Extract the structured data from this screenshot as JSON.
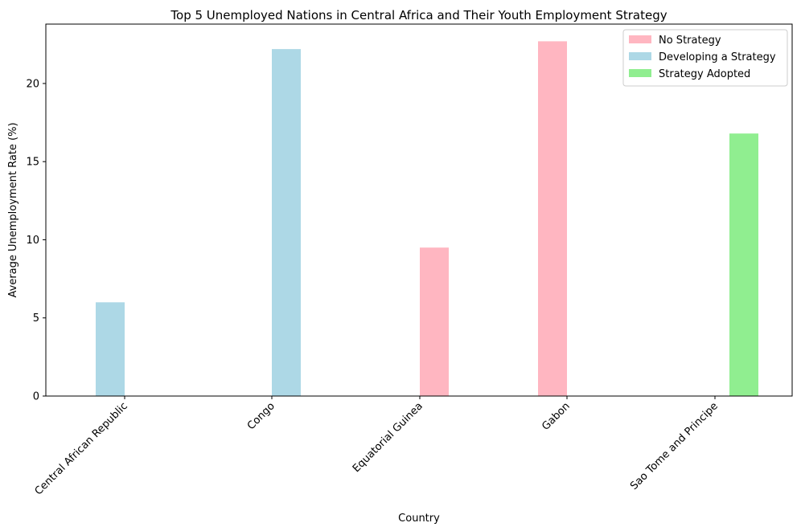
{
  "chart_data": {
    "type": "bar",
    "title": "Top 5 Unemployed Nations in Central Africa and Their Youth Employment Strategy",
    "xlabel": "Country",
    "ylabel": "Average Unemployment Rate (%)",
    "categories": [
      "Central African Republic",
      "Congo",
      "Equatorial Guinea",
      "Gabon",
      "Sao Tome and Principe"
    ],
    "ylim": [
      0,
      23.8
    ],
    "yticks": [
      0,
      5,
      10,
      15,
      20
    ],
    "ytick_labels": [
      "0",
      "5",
      "10",
      "15",
      "20"
    ],
    "grid": false,
    "legend_position": "top-right",
    "series": [
      {
        "name": "No Strategy",
        "color": "#ffb6c1",
        "values": [
          0,
          0,
          9.5,
          22.7,
          0
        ]
      },
      {
        "name": "Developing a Strategy",
        "color": "#add8e6",
        "values": [
          6.0,
          22.2,
          0,
          0,
          0
        ]
      },
      {
        "name": "Strategy Adopted",
        "color": "#90ee90",
        "values": [
          0,
          0,
          0,
          0,
          16.8
        ]
      }
    ]
  }
}
